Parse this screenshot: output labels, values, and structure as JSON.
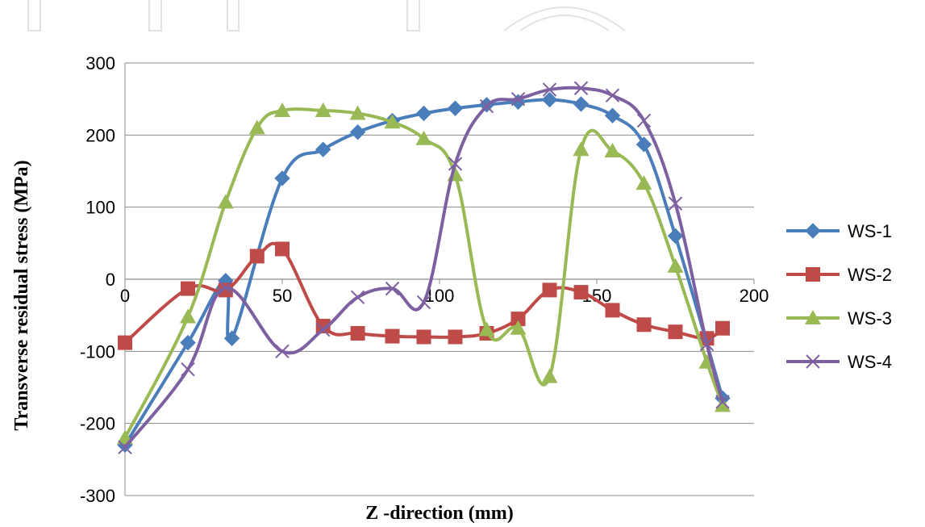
{
  "chart_data": {
    "type": "line",
    "title": "",
    "xlabel": "Z -direction (mm)",
    "ylabel": "Transverse residual stress (MPa)",
    "xlim": [
      0,
      200
    ],
    "ylim": [
      -300,
      300
    ],
    "x_ticks": [
      "0",
      "50",
      "100",
      "150",
      "200"
    ],
    "y_ticks": [
      "300",
      "200",
      "100",
      "0",
      "-100",
      "-200",
      "-300"
    ],
    "grid": "horizontal",
    "legend_position": "right",
    "series": [
      {
        "name": "WS-1",
        "color": "#4a7ebb",
        "marker": "diamond",
        "points": [
          [
            0,
            -230
          ],
          [
            20,
            -88
          ],
          [
            32,
            -2
          ],
          [
            34,
            -82
          ],
          [
            50,
            140
          ],
          [
            63,
            180
          ],
          [
            74,
            204
          ],
          [
            85,
            220
          ],
          [
            95,
            230
          ],
          [
            105,
            237
          ],
          [
            115,
            242
          ],
          [
            125,
            246
          ],
          [
            135,
            249
          ],
          [
            145,
            243
          ],
          [
            155,
            227
          ],
          [
            165,
            187
          ],
          [
            175,
            60
          ],
          [
            190,
            -165
          ]
        ]
      },
      {
        "name": "WS-2",
        "color": "#be4b48",
        "marker": "square",
        "points": [
          [
            0,
            -88
          ],
          [
            20,
            -13
          ],
          [
            32,
            -15
          ],
          [
            42,
            32
          ],
          [
            50,
            42
          ],
          [
            63,
            -65
          ],
          [
            74,
            -75
          ],
          [
            85,
            -79
          ],
          [
            95,
            -80
          ],
          [
            105,
            -80
          ],
          [
            115,
            -75
          ],
          [
            125,
            -55
          ],
          [
            135,
            -15
          ],
          [
            145,
            -18
          ],
          [
            155,
            -43
          ],
          [
            165,
            -63
          ],
          [
            175,
            -73
          ],
          [
            185,
            -82
          ],
          [
            190,
            -68
          ]
        ]
      },
      {
        "name": "WS-3",
        "color": "#98b954",
        "marker": "triangle",
        "points": [
          [
            0,
            -220
          ],
          [
            20,
            -52
          ],
          [
            32,
            107
          ],
          [
            42,
            210
          ],
          [
            50,
            234
          ],
          [
            63,
            234
          ],
          [
            74,
            230
          ],
          [
            85,
            218
          ],
          [
            95,
            195
          ],
          [
            105,
            145
          ],
          [
            115,
            -70
          ],
          [
            125,
            -68
          ],
          [
            135,
            -135
          ],
          [
            145,
            180
          ],
          [
            155,
            178
          ],
          [
            165,
            133
          ],
          [
            175,
            18
          ],
          [
            185,
            -115
          ],
          [
            190,
            -175
          ]
        ]
      },
      {
        "name": "WS-4",
        "color": "#7d60a0",
        "marker": "x",
        "points": [
          [
            0,
            -233
          ],
          [
            20,
            -125
          ],
          [
            32,
            -12
          ],
          [
            50,
            -100
          ],
          [
            63,
            -70
          ],
          [
            74,
            -25
          ],
          [
            85,
            -13
          ],
          [
            95,
            -32
          ],
          [
            105,
            160
          ],
          [
            115,
            240
          ],
          [
            125,
            250
          ],
          [
            135,
            263
          ],
          [
            145,
            265
          ],
          [
            155,
            255
          ],
          [
            165,
            220
          ],
          [
            175,
            105
          ],
          [
            185,
            -90
          ],
          [
            190,
            -170
          ]
        ]
      }
    ]
  }
}
